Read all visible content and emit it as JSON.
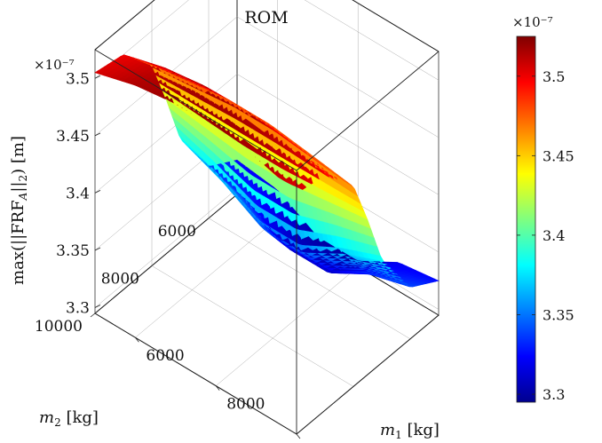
{
  "chart_data": {
    "type": "surface",
    "title": "ROM",
    "xlabel": "$m_1$ [kg]",
    "ylabel": "$m_2$ [kg]",
    "zlabel": "$\\max(\\|\\mathrm{FRF}_A\\|_2)$ [m]",
    "x_ticks": [
      6000,
      8000,
      10000
    ],
    "y_ticks": [
      6000,
      8000,
      10000
    ],
    "z_ticks": [
      3.3,
      3.35,
      3.4,
      3.45,
      3.5
    ],
    "x_ticklabels": [
      "6000",
      "8000",
      "10000"
    ],
    "y_ticklabels": [
      "6000",
      "8000",
      "10000"
    ],
    "z_ticklabels": [
      "3.3",
      "3.35",
      "3.4",
      "3.45",
      "3.5"
    ],
    "z_exponent_label": "×10⁻⁷",
    "colorbar": {
      "colormap": "jet",
      "limits": [
        3.295,
        3.525
      ],
      "ticks": [
        3.3,
        3.35,
        3.4,
        3.45,
        3.5
      ],
      "ticklabels": [
        "3.3",
        "3.35",
        "3.4",
        "3.45",
        "3.5"
      ],
      "exponent_label": "×10⁻⁷"
    },
    "xlim": [
      5000,
      10000
    ],
    "ylim": [
      5000,
      10000
    ],
    "zlim": [
      3.295,
      3.525
    ],
    "surface_samples": {
      "m1": [
        5000,
        6000,
        7000,
        7500,
        8000,
        9000,
        10000
      ],
      "m2": [
        5000,
        6000,
        7000,
        7500,
        8000,
        9000,
        10000
      ],
      "z": [
        [
          3.325,
          3.32,
          3.3,
          3.3,
          3.3,
          3.32,
          3.325
        ],
        [
          3.34,
          3.33,
          3.31,
          3.31,
          3.31,
          3.33,
          3.34
        ],
        [
          3.385,
          3.37,
          3.35,
          3.35,
          3.35,
          3.37,
          3.385
        ],
        [
          3.43,
          3.425,
          3.42,
          3.42,
          3.42,
          3.425,
          3.43
        ],
        [
          3.47,
          3.475,
          3.48,
          3.48,
          3.48,
          3.475,
          3.47
        ],
        [
          3.5,
          3.51,
          3.515,
          3.515,
          3.515,
          3.51,
          3.5
        ],
        [
          3.505,
          3.515,
          3.52,
          3.52,
          3.52,
          3.515,
          3.505
        ]
      ]
    }
  }
}
